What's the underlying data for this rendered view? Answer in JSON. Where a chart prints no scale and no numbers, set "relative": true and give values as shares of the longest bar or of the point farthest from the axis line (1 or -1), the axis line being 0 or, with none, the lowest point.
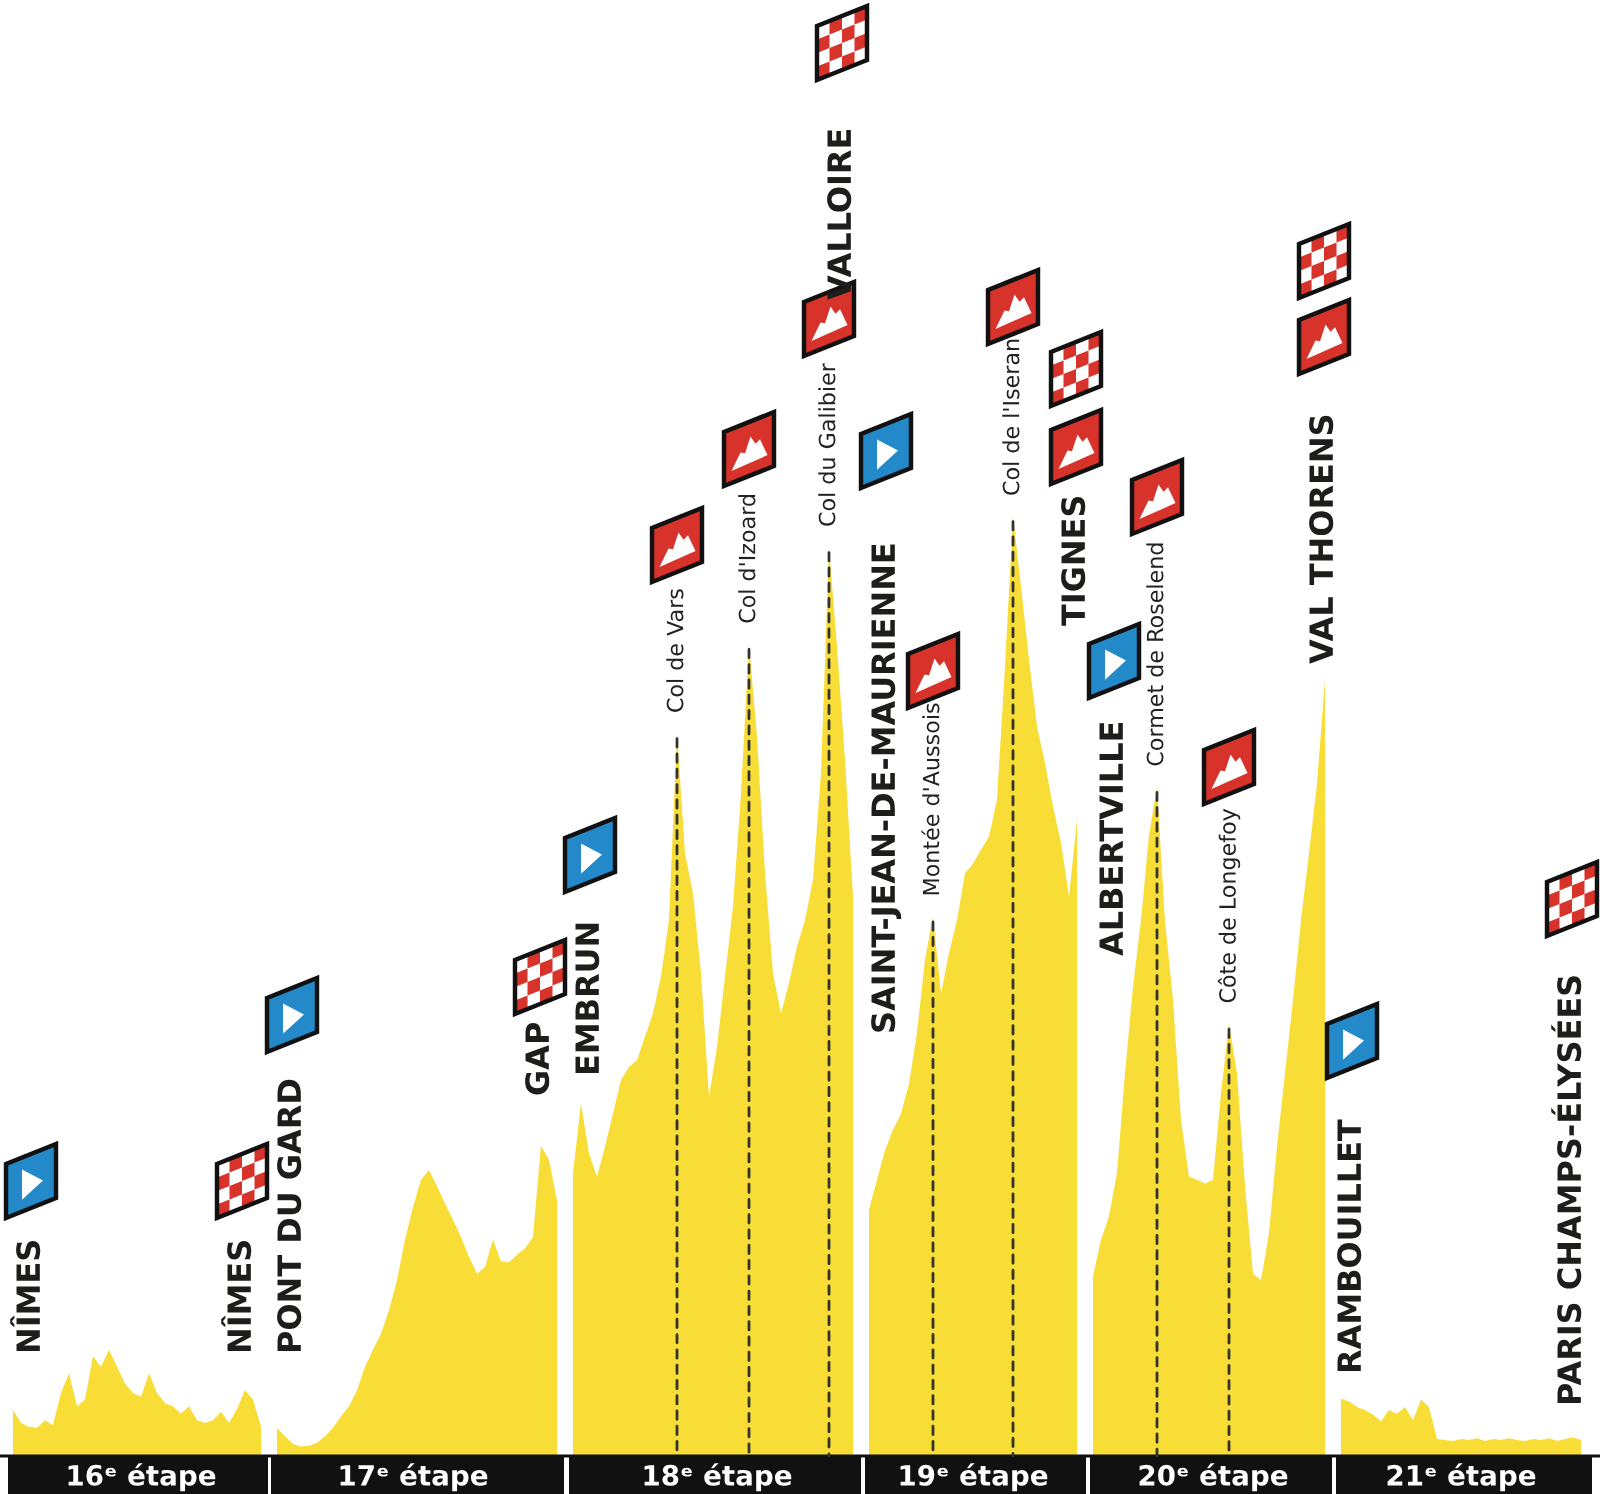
{
  "chart_data": {
    "type": "area",
    "relative": true,
    "color": "#f7dd35",
    "categories": [
      null,
      null,
      null,
      null,
      null,
      null,
      null,
      null,
      null,
      null,
      null,
      null,
      null,
      null,
      null,
      null,
      "16ᵉ étape",
      null,
      null,
      null,
      null,
      null,
      null,
      null,
      null,
      null,
      null,
      null,
      null,
      null,
      null,
      null,
      null,
      null,
      null,
      null,
      null,
      null,
      null,
      null,
      null,
      null,
      null,
      null,
      null,
      null,
      null,
      null,
      null,
      null,
      "17ᵉ étape",
      null,
      null,
      null,
      null,
      null,
      null,
      null,
      null,
      null,
      null,
      null,
      null,
      null,
      null,
      null,
      null,
      null,
      null,
      null,
      null,
      null,
      null,
      null,
      null,
      null,
      null,
      null,
      null,
      null,
      null,
      null,
      null,
      null,
      null,
      null,
      null,
      null,
      "18ᵉ étape",
      null,
      null,
      null,
      null,
      null,
      null,
      null,
      null,
      null,
      null,
      null,
      null,
      null,
      null,
      null,
      null,
      null,
      null,
      null,
      null,
      null,
      null,
      null,
      null,
      null,
      null,
      null,
      null,
      null,
      null,
      null,
      "19ᵉ étape",
      null,
      null,
      null,
      null,
      null,
      null,
      null,
      null,
      null,
      null,
      null,
      null,
      null,
      null,
      null,
      null,
      null,
      null,
      null,
      null,
      null,
      null,
      null,
      null,
      null,
      null,
      null,
      null,
      null,
      "20ᵉ étape",
      null,
      null,
      null,
      null,
      null,
      null,
      null,
      null,
      null,
      null,
      null,
      null,
      null,
      null,
      null,
      null,
      null,
      null,
      null,
      null,
      null,
      null,
      null,
      null,
      null,
      null,
      null,
      null,
      null,
      null,
      "21ᵉ étape",
      null,
      null,
      null,
      null,
      null,
      null,
      null,
      null,
      null,
      null,
      null,
      null,
      null,
      null,
      null
    ],
    "values": [
      0.049,
      0.035,
      0.031,
      0.03,
      0.038,
      0.033,
      0.067,
      0.088,
      0.053,
      0.06,
      0.106,
      0.095,
      0.113,
      0.095,
      0.077,
      0.067,
      0.063,
      0.088,
      0.067,
      0.056,
      0.053,
      0.045,
      0.053,
      0.038,
      0.035,
      0.038,
      0.047,
      0.035,
      0.05,
      0.07,
      0.06,
      0.031,
      null,
      0.03,
      0.021,
      0.013,
      0.01,
      0.011,
      0.014,
      0.021,
      0.03,
      0.042,
      0.053,
      0.07,
      0.095,
      0.113,
      0.13,
      0.155,
      0.187,
      0.23,
      0.265,
      0.294,
      0.304,
      0.287,
      0.269,
      0.251,
      0.233,
      0.212,
      0.194,
      0.201,
      0.23,
      0.207,
      0.206,
      0.214,
      0.221,
      0.233,
      0.33,
      0.315,
      0.272,
      null,
      0.301,
      0.375,
      0.322,
      0.297,
      0.329,
      0.364,
      0.4,
      0.414,
      0.421,
      0.446,
      0.471,
      0.51,
      0.57,
      0.769,
      0.641,
      0.599,
      0.513,
      0.382,
      0.435,
      0.51,
      0.584,
      0.705,
      0.864,
      0.765,
      0.62,
      0.513,
      0.471,
      0.503,
      0.542,
      0.57,
      0.613,
      0.726,
      0.967,
      0.861,
      0.74,
      0.595,
      null,
      0.262,
      0.294,
      0.325,
      0.347,
      0.364,
      0.396,
      0.45,
      0.528,
      0.574,
      0.492,
      0.535,
      0.57,
      0.62,
      0.63,
      0.645,
      0.659,
      0.698,
      0.84,
      1.0,
      0.925,
      0.847,
      0.776,
      0.737,
      0.691,
      0.652,
      0.595,
      0.677,
      null,
      0.191,
      0.23,
      0.255,
      0.301,
      0.407,
      0.499,
      0.57,
      0.66,
      0.712,
      0.569,
      0.485,
      0.357,
      0.297,
      0.294,
      0.29,
      0.294,
      0.386,
      0.46,
      0.407,
      0.287,
      0.194,
      0.187,
      0.237,
      0.329,
      0.407,
      0.485,
      0.57,
      0.641,
      0.715,
      0.826,
      null,
      0.061,
      0.058,
      0.052,
      0.049,
      0.044,
      0.037,
      0.049,
      0.045,
      0.052,
      0.038,
      0.06,
      0.052,
      0.018,
      0.017,
      0.016,
      0.018,
      0.017,
      0.019,
      0.016,
      0.018,
      0.017,
      0.019,
      0.017,
      0.016,
      0.018,
      0.017,
      0.019,
      0.016,
      0.018,
      0.02,
      0.017
    ],
    "annotations": [
      "NÎMES",
      "NÎMES",
      "PONT DU GARD",
      "GAP",
      "EMBRUN",
      {
        "text": "Col de Vars",
        "y": 0.769
      },
      {
        "text": "Col d'Izoard",
        "y": 0.864
      },
      {
        "text": "Col du Galibier",
        "y": 0.967
      },
      "VALLOIRE",
      "SAINT-JEAN-DE-MAURIENNE",
      {
        "text": "Montée d'Aussois",
        "y": 0.574
      },
      {
        "text": "Col de l'Iseran",
        "y": 1.0
      },
      "TIGNES",
      "ALBERTVILLE",
      {
        "text": "Cormet de Roselend",
        "y": 0.712
      },
      {
        "text": "Côte de Longefoy",
        "y": 0.46
      },
      "VAL THORENS",
      "RAMBOUILLET",
      "PARIS CHAMPS-ÉLYSÉES"
    ]
  }
}
